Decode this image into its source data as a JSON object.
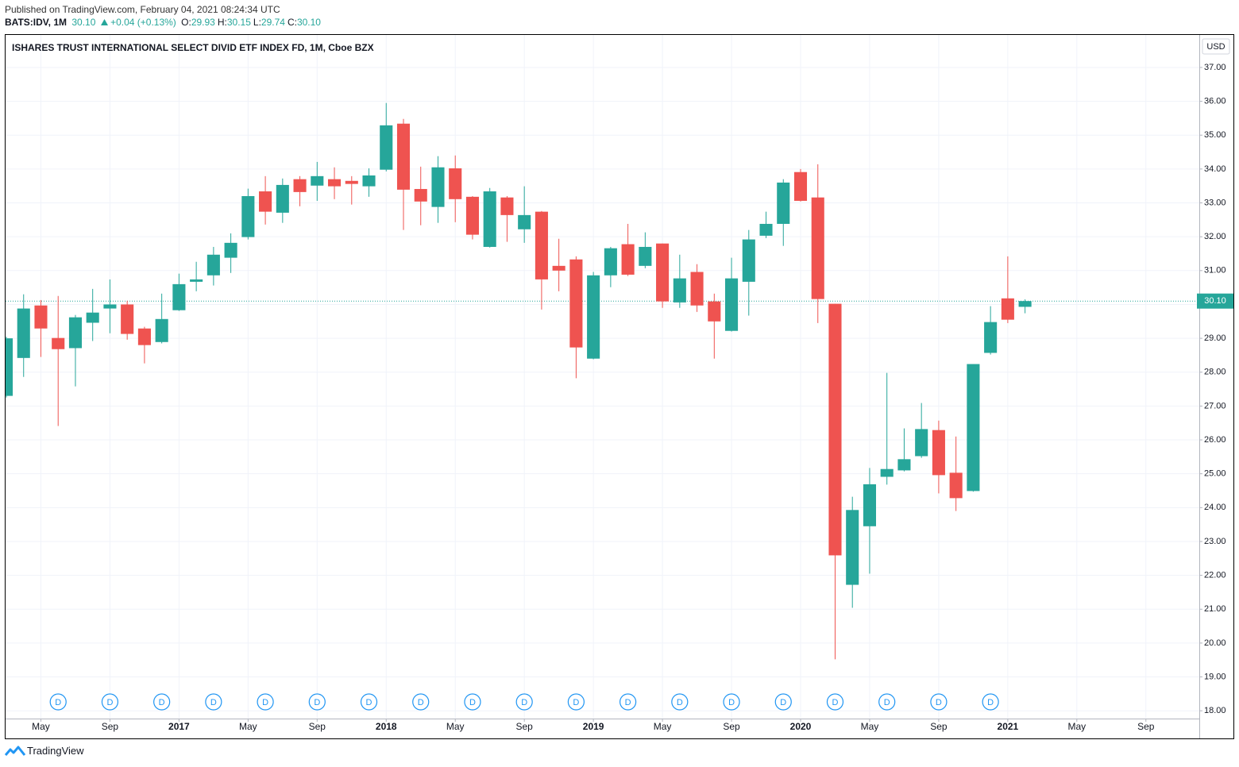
{
  "header": {
    "published": "Published on TradingView.com, February 04, 2021 08:24:34 UTC",
    "symbol": "BATS:IDV, 1M",
    "last": "30.10",
    "change": "+0.04 (+0.13%)",
    "ohlc": [
      {
        "key": "O:",
        "value": "29.93"
      },
      {
        "key": "H:",
        "value": "30.15"
      },
      {
        "key": "L:",
        "value": "29.74"
      },
      {
        "key": "C:",
        "value": "30.10"
      }
    ]
  },
  "footer": "TradingView",
  "chart_data": {
    "type": "candlestick",
    "title": "ISHARES TRUST INTERNATIONAL SELECT DIVID ETF INDEX FD, 1M, Cboe BZX",
    "currency": "USD",
    "up_color": "#26a69a",
    "down_color": "#ef5350",
    "x": [
      "2016-03",
      "2016-04",
      "2016-05",
      "2016-06",
      "2016-07",
      "2016-08",
      "2016-09",
      "2016-10",
      "2016-11",
      "2016-12",
      "2017-01",
      "2017-02",
      "2017-03",
      "2017-04",
      "2017-05",
      "2017-06",
      "2017-07",
      "2017-08",
      "2017-09",
      "2017-10",
      "2017-11",
      "2017-12",
      "2018-01",
      "2018-02",
      "2018-03",
      "2018-04",
      "2018-05",
      "2018-06",
      "2018-07",
      "2018-08",
      "2018-09",
      "2018-10",
      "2018-11",
      "2018-12",
      "2019-01",
      "2019-02",
      "2019-03",
      "2019-04",
      "2019-05",
      "2019-06",
      "2019-07",
      "2019-08",
      "2019-09",
      "2019-10",
      "2019-11",
      "2019-12",
      "2020-01",
      "2020-02",
      "2020-03",
      "2020-04",
      "2020-05",
      "2020-06",
      "2020-07",
      "2020-08",
      "2020-09",
      "2020-10",
      "2020-11",
      "2020-12",
      "2021-01",
      "2021-02"
    ],
    "open": [
      27.3,
      28.42,
      29.97,
      29.01,
      28.71,
      29.46,
      29.88,
      30.0,
      29.29,
      28.89,
      29.83,
      30.67,
      30.86,
      31.38,
      31.99,
      33.34,
      32.71,
      33.7,
      33.51,
      33.7,
      33.65,
      33.49,
      33.98,
      35.34,
      33.41,
      32.88,
      34.02,
      33.18,
      31.7,
      33.16,
      32.22,
      32.74,
      31.14,
      31.33,
      28.4,
      30.86,
      31.78,
      31.14,
      31.8,
      30.06,
      30.96,
      30.09,
      29.22,
      30.67,
      32.03,
      32.38,
      33.91,
      33.16,
      30.02,
      21.72,
      23.45,
      24.91,
      25.1,
      25.52,
      26.29,
      25.03,
      24.49,
      28.57,
      30.18,
      29.93
    ],
    "high": [
      29.05,
      30.3,
      30.13,
      30.25,
      29.69,
      30.46,
      30.74,
      30.11,
      29.34,
      30.32,
      30.91,
      31.26,
      31.7,
      32.1,
      33.42,
      33.79,
      33.72,
      33.79,
      34.21,
      34.05,
      33.79,
      34.02,
      35.95,
      35.48,
      34.07,
      34.38,
      34.4,
      33.2,
      33.44,
      33.2,
      33.49,
      32.76,
      31.94,
      31.42,
      30.96,
      31.7,
      32.38,
      32.13,
      31.8,
      31.47,
      31.19,
      30.32,
      31.38,
      32.2,
      32.74,
      33.7,
      34.0,
      34.14,
      30.02,
      24.32,
      25.17,
      27.98,
      26.34,
      27.09,
      26.57,
      26.1,
      28.24,
      29.95,
      31.42,
      30.15
    ],
    "low": [
      27.25,
      27.86,
      28.45,
      26.41,
      27.58,
      28.92,
      29.15,
      28.96,
      28.26,
      28.85,
      29.81,
      30.39,
      30.56,
      30.93,
      31.92,
      32.36,
      32.41,
      32.9,
      33.06,
      33.11,
      32.95,
      33.18,
      33.93,
      32.2,
      32.34,
      32.41,
      32.43,
      31.92,
      31.68,
      31.85,
      31.82,
      29.85,
      30.39,
      27.82,
      28.38,
      30.51,
      30.84,
      31.07,
      29.9,
      29.9,
      29.78,
      28.4,
      29.2,
      29.67,
      31.96,
      31.73,
      33.04,
      29.45,
      19.52,
      21.04,
      22.05,
      24.68,
      25.07,
      25.47,
      24.42,
      23.9,
      24.47,
      28.52,
      29.45,
      29.74
    ],
    "close": [
      29.0,
      29.88,
      29.29,
      28.68,
      29.62,
      29.76,
      30.0,
      29.13,
      28.8,
      29.57,
      30.6,
      30.74,
      31.47,
      31.82,
      33.2,
      32.74,
      33.53,
      33.32,
      33.79,
      33.49,
      33.56,
      33.81,
      35.29,
      33.39,
      33.04,
      34.05,
      33.11,
      32.06,
      33.34,
      32.64,
      32.64,
      30.74,
      31.0,
      28.73,
      30.86,
      31.66,
      30.88,
      31.7,
      30.09,
      30.77,
      29.97,
      29.5,
      30.77,
      31.92,
      32.38,
      33.6,
      33.06,
      30.16,
      22.59,
      23.93,
      24.69,
      25.14,
      25.43,
      26.32,
      24.96,
      24.28,
      28.24,
      29.48,
      29.55,
      30.1
    ],
    "xlim": [
      "2016-03",
      "2021-12"
    ],
    "xticks": [
      {
        "value": "2016-05",
        "label": "May"
      },
      {
        "value": "2016-09",
        "label": "Sep"
      },
      {
        "value": "2017-01",
        "label": "2017"
      },
      {
        "value": "2017-05",
        "label": "May"
      },
      {
        "value": "2017-09",
        "label": "Sep"
      },
      {
        "value": "2018-01",
        "label": "2018"
      },
      {
        "value": "2018-05",
        "label": "May"
      },
      {
        "value": "2018-09",
        "label": "Sep"
      },
      {
        "value": "2019-01",
        "label": "2019"
      },
      {
        "value": "2019-05",
        "label": "May"
      },
      {
        "value": "2019-09",
        "label": "Sep"
      },
      {
        "value": "2020-01",
        "label": "2020"
      },
      {
        "value": "2020-05",
        "label": "May"
      },
      {
        "value": "2020-09",
        "label": "Sep"
      },
      {
        "value": "2021-01",
        "label": "2021"
      },
      {
        "value": "2021-05",
        "label": "May"
      },
      {
        "value": "2021-09",
        "label": "Sep"
      }
    ],
    "ylim": [
      17.77,
      37.96
    ],
    "yticks": [
      {
        "value": 18,
        "label": "18.00"
      },
      {
        "value": 19,
        "label": "19.00"
      },
      {
        "value": 20,
        "label": "20.00"
      },
      {
        "value": 21,
        "label": "21.00"
      },
      {
        "value": 22,
        "label": "22.00"
      },
      {
        "value": 23,
        "label": "23.00"
      },
      {
        "value": 24,
        "label": "24.00"
      },
      {
        "value": 25,
        "label": "25.00"
      },
      {
        "value": 26,
        "label": "26.00"
      },
      {
        "value": 27,
        "label": "27.00"
      },
      {
        "value": 28,
        "label": "28.00"
      },
      {
        "value": 29,
        "label": "29.00"
      },
      {
        "value": 30,
        "label": "30.00"
      },
      {
        "value": 31,
        "label": "31.00"
      },
      {
        "value": 32,
        "label": "32.00"
      },
      {
        "value": 33,
        "label": "33.00"
      },
      {
        "value": 34,
        "label": "34.00"
      },
      {
        "value": 35,
        "label": "35.00"
      },
      {
        "value": 36,
        "label": "36.00"
      },
      {
        "value": 37,
        "label": "37.00"
      }
    ],
    "grid": true,
    "last_price": {
      "value": 30.1,
      "label": "30.10"
    },
    "dividends": {
      "label": "D",
      "dates": [
        "2016-06",
        "2016-09",
        "2016-12",
        "2017-03",
        "2017-06",
        "2017-09",
        "2017-12",
        "2018-03",
        "2018-06",
        "2018-09",
        "2018-12",
        "2019-03",
        "2019-06",
        "2019-09",
        "2019-12",
        "2020-03",
        "2020-06",
        "2020-09",
        "2020-12"
      ]
    }
  }
}
